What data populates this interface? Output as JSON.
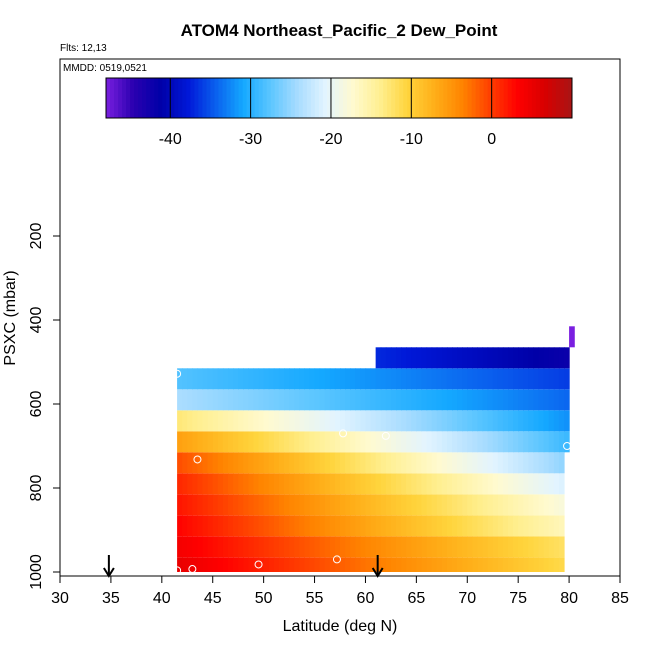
{
  "chart_data": {
    "type": "heatmap",
    "title": "ATOM4 Northeast_Pacific_2 Dew_Point",
    "flights_label": "Flts: 12,13",
    "date_label": "MMDD: 0519,0521",
    "xlabel": "Latitude (deg N)",
    "ylabel": "PSXC (mbar)",
    "xlim": [
      30,
      85
    ],
    "ylim": [
      1000,
      0
    ],
    "x_ticks": [
      "30",
      "35",
      "40",
      "45",
      "50",
      "55",
      "60",
      "65",
      "70",
      "75",
      "80",
      "85"
    ],
    "y_ticks": [
      "200",
      "400",
      "600",
      "800",
      "1000"
    ],
    "colorbar": {
      "range": [
        -48,
        10
      ],
      "ticks": [
        "-40",
        "-30",
        "-20",
        "-10",
        "0"
      ],
      "tick_values": [
        -40,
        -30,
        -20,
        -10,
        0
      ],
      "colors": [
        "#7a1fe0",
        "#2a00b0",
        "#0000a8",
        "#0018d8",
        "#0a60ee",
        "#14a8ff",
        "#5cc6ff",
        "#a8dcff",
        "#e2f4ff",
        "#fffad0",
        "#ffef90",
        "#ffd43c",
        "#ffae18",
        "#ff8400",
        "#ff4000",
        "#ff0000",
        "#d80000",
        "#a81414"
      ]
    },
    "profile_markers": [
      34.8,
      61.2
    ],
    "layers": [
      {
        "p_top": 965,
        "p_bot": 1000,
        "lat_start": 41.5,
        "lat_end": 79.5,
        "left_value": 5,
        "right_value": -11
      },
      {
        "p_top": 915,
        "p_bot": 965,
        "lat_start": 41.5,
        "lat_end": 79.5,
        "left_value": 4,
        "right_value": -12
      },
      {
        "p_top": 865,
        "p_bot": 915,
        "lat_start": 41.5,
        "lat_end": 79.5,
        "left_value": 3,
        "right_value": -16
      },
      {
        "p_top": 815,
        "p_bot": 865,
        "lat_start": 41.5,
        "lat_end": 79.5,
        "left_value": 2,
        "right_value": -18
      },
      {
        "p_top": 765,
        "p_bot": 815,
        "lat_start": 41.5,
        "lat_end": 79.5,
        "left_value": 1,
        "right_value": -21
      },
      {
        "p_top": 715,
        "p_bot": 765,
        "lat_start": 41.5,
        "lat_end": 79.5,
        "left_value": -1,
        "right_value": -25
      },
      {
        "p_top": 665,
        "p_bot": 715,
        "lat_start": 41.5,
        "lat_end": 80.0,
        "left_value": -6,
        "right_value": -29
      },
      {
        "p_top": 615,
        "p_bot": 665,
        "lat_start": 41.5,
        "lat_end": 80.0,
        "left_value": -13,
        "right_value": -32
      },
      {
        "p_top": 565,
        "p_bot": 615,
        "lat_start": 41.5,
        "lat_end": 80.0,
        "left_value": -24,
        "right_value": -34
      },
      {
        "p_top": 515,
        "p_bot": 565,
        "lat_start": 41.5,
        "lat_end": 80.0,
        "left_value": -28,
        "right_value": -36
      },
      {
        "p_top": 465,
        "p_bot": 515,
        "lat_start": 61.0,
        "lat_end": 80.0,
        "left_value": -37,
        "right_value": -42
      },
      {
        "p_top": 415,
        "p_bot": 465,
        "lat_start": 80.0,
        "lat_end": 80.5,
        "left_value": -48,
        "right_value": -48
      }
    ],
    "sample_points": [
      {
        "lat": 41.5,
        "p": 528
      },
      {
        "lat": 43.5,
        "p": 732
      },
      {
        "lat": 57.8,
        "p": 670
      },
      {
        "lat": 62.0,
        "p": 676
      },
      {
        "lat": 79.8,
        "p": 700
      },
      {
        "lat": 41.5,
        "p": 996
      },
      {
        "lat": 43.0,
        "p": 993
      },
      {
        "lat": 49.5,
        "p": 982
      },
      {
        "lat": 57.2,
        "p": 970
      }
    ]
  }
}
